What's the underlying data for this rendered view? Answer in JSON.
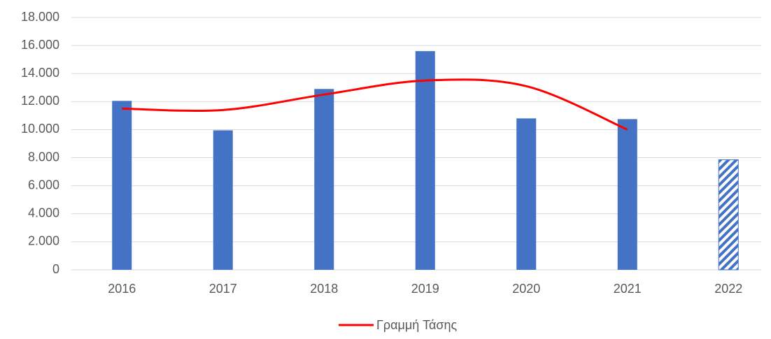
{
  "chart_data": {
    "type": "bar",
    "categories": [
      "2016",
      "2017",
      "2018",
      "2019",
      "2020",
      "2021",
      "2022"
    ],
    "values": [
      12050,
      9950,
      12900,
      15600,
      10800,
      10750,
      7850
    ],
    "color": "#4472c4",
    "bar_styles": [
      "solid",
      "solid",
      "solid",
      "solid",
      "solid",
      "solid",
      "hatched"
    ],
    "series": [
      {
        "name": "Γραμμή Τάσης",
        "color": "#ff0000",
        "values": [
          11500,
          11400,
          12500,
          13500,
          13100,
          10000,
          null
        ],
        "smooth": true
      }
    ],
    "ylim": [
      0,
      18000
    ],
    "yticks": [
      0,
      {
        "value": 2000,
        "label": "2.000"
      },
      {
        "value": 4000,
        "label": "4.000"
      },
      {
        "value": 6000,
        "label": "6.000"
      },
      {
        "value": 8000,
        "label": "8.000"
      },
      {
        "value": 10000,
        "label": "10.000"
      },
      {
        "value": 12000,
        "label": "12.000"
      },
      {
        "value": 14000,
        "label": "14.000"
      },
      {
        "value": 16000,
        "label": "16.000"
      },
      {
        "value": 18000,
        "label": "18.000"
      }
    ],
    "grid": true,
    "legend": "bottom"
  }
}
